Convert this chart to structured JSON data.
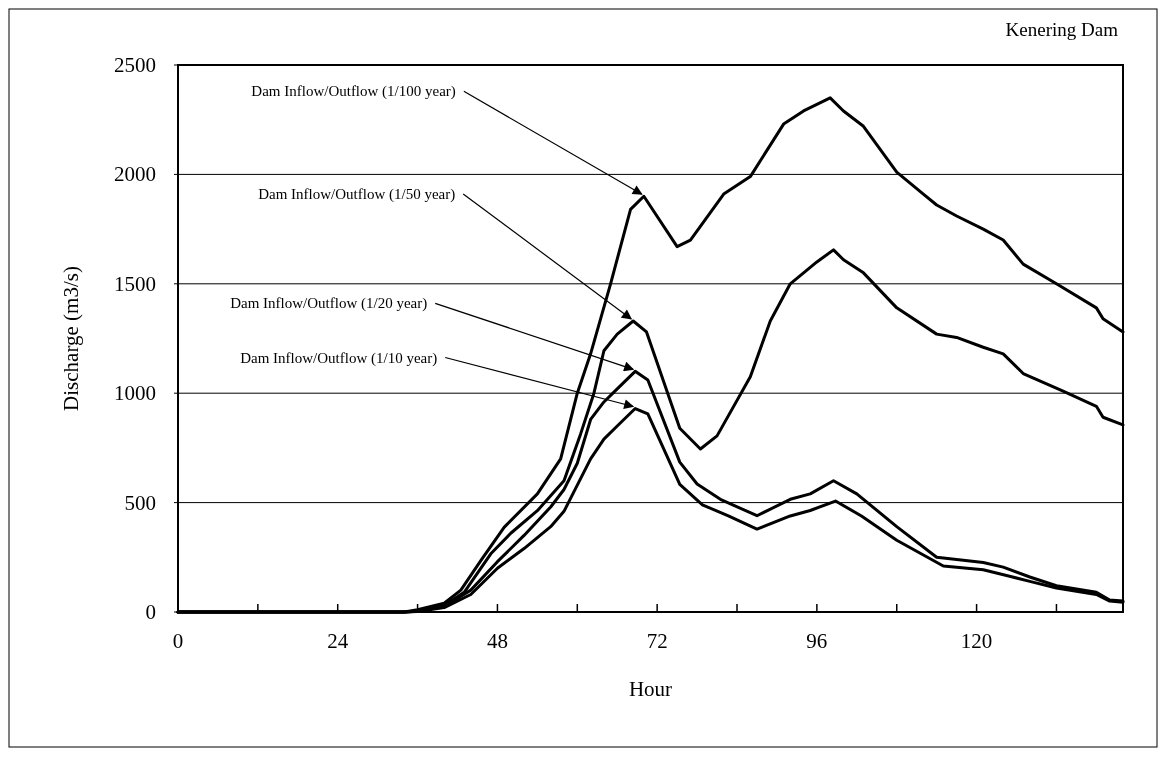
{
  "chart_data": {
    "type": "line",
    "title": "Kenering Dam",
    "xlabel": "Hour",
    "ylabel": "Discharge (m3/s)",
    "xlim": [
      0,
      142
    ],
    "ylim": [
      0,
      2500
    ],
    "xticks": [
      0,
      {
        "value": 12,
        "label": null
      },
      24,
      {
        "value": 36,
        "label": null
      },
      48,
      {
        "value": 60,
        "label": null
      },
      72,
      {
        "value": 84,
        "label": null
      },
      96,
      {
        "value": 108,
        "label": null
      },
      120,
      {
        "value": 132,
        "label": null
      }
    ],
    "yticks": [
      0,
      500,
      1000,
      1500,
      2000,
      2500
    ],
    "grid": "y",
    "line_style": "solid",
    "marker": "none",
    "series": [
      {
        "color": "#000000",
        "x": [
          0,
          34,
          36,
          40,
          42.5,
          45.5,
          49,
          54,
          57.5,
          60,
          62,
          65,
          68,
          70,
          75,
          77,
          82,
          86,
          91,
          94,
          98,
          100,
          103,
          108,
          112,
          114,
          117,
          121,
          124,
          127,
          132,
          138,
          139,
          142
        ],
        "values": [
          0,
          0,
          10,
          40,
          100,
          235,
          387,
          540,
          700,
          1000,
          1180,
          1500,
          1840,
          1900,
          1670,
          1700,
          1910,
          1990,
          2230,
          2290,
          2350,
          2290,
          2220,
          2010,
          1910,
          1860,
          1810,
          1750,
          1700,
          1590,
          1500,
          1390,
          1340,
          1280
        ]
      },
      {
        "color": "#000000",
        "x": [
          0,
          34,
          36,
          40,
          43,
          47,
          50,
          54,
          58,
          60.5,
          62.5,
          64,
          66,
          68.4,
          70.4,
          75.4,
          78.5,
          81,
          86,
          89,
          92,
          96,
          98.5,
          100,
          103,
          108,
          114,
          117,
          121,
          124,
          127,
          133,
          138,
          139,
          142
        ],
        "values": [
          0,
          0,
          5,
          30,
          90,
          266,
          360,
          463,
          600,
          814,
          1000,
          1194,
          1270,
          1330,
          1280,
          840,
          745,
          805,
          1075,
          1330,
          1500,
          1600,
          1655,
          1610,
          1550,
          1390,
          1270,
          1255,
          1210,
          1180,
          1090,
          1010,
          940,
          890,
          855
        ]
      },
      {
        "color": "#000000",
        "x": [
          0,
          34,
          36,
          40,
          44,
          48,
          52,
          56,
          58,
          60,
          62,
          64,
          66,
          68.7,
          70.6,
          75.4,
          78,
          81.5,
          87,
          92,
          95,
          98.5,
          102,
          108,
          114,
          121,
          124,
          128,
          132,
          138,
          140,
          142
        ],
        "values": [
          0,
          0,
          3,
          25,
          100,
          230,
          350,
          480,
          560,
          680,
          880,
          960,
          1020,
          1100,
          1060,
          685,
          585,
          515,
          440,
          515,
          540,
          600,
          540,
          390,
          250,
          226,
          205,
          160,
          120,
          90,
          55,
          50
        ]
      },
      {
        "color": "#000000",
        "x": [
          0,
          34,
          36,
          40,
          44,
          48,
          52,
          56,
          58,
          60,
          62,
          64,
          66,
          68.7,
          70.6,
          75.4,
          78.8,
          82.7,
          87,
          92,
          95,
          98.8,
          102.7,
          108,
          115,
          121,
          124.5,
          128,
          132,
          138,
          140,
          142
        ],
        "values": [
          0,
          0,
          2,
          20,
          80,
          200,
          290,
          390,
          460,
          580,
          700,
          790,
          850,
          930,
          905,
          583,
          490,
          439,
          379,
          439,
          464,
          507,
          439,
          328,
          210,
          193,
          167,
          140,
          110,
          80,
          50,
          45
        ]
      }
    ],
    "annotations": [
      {
        "text": "Dam Inflow/Outflow (1/100 year)",
        "x": 70,
        "y": 1900
      },
      {
        "text": "Dam Inflow/Outflow (1/50 year)",
        "x": 68.4,
        "y": 1330
      },
      {
        "text": "Dam Inflow/Outflow (1/20 year)",
        "x": 68.7,
        "y": 1100
      },
      {
        "text": "Dam Inflow/Outflow (1/10 year)",
        "x": 68.7,
        "y": 930
      }
    ]
  }
}
